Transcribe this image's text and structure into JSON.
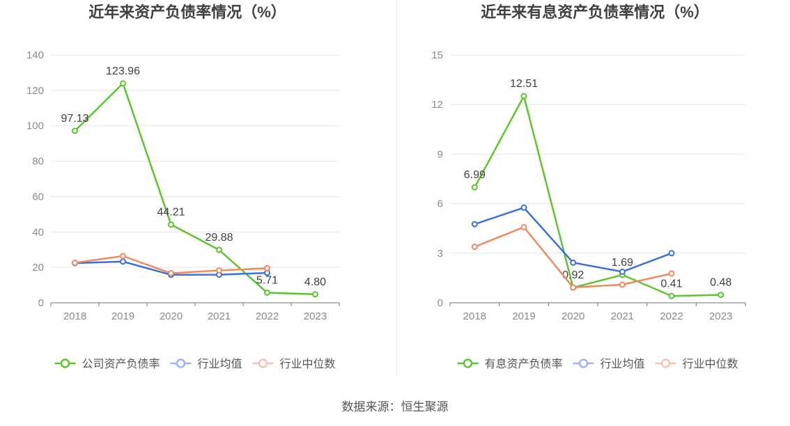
{
  "chart_data": [
    {
      "type": "line",
      "title": "近年来资产负债率情况（%）",
      "categories": [
        "2018",
        "2019",
        "2020",
        "2021",
        "2022",
        "2023"
      ],
      "ylim": [
        0,
        140
      ],
      "yticks": [
        0,
        20,
        40,
        60,
        80,
        100,
        120,
        140
      ],
      "grid": true,
      "legend": "bottom",
      "series": [
        {
          "name": "公司资产负债率",
          "color": "#5cc52e",
          "data_labels": true,
          "values": [
            97.13,
            123.96,
            44.21,
            29.88,
            5.71,
            4.8
          ]
        },
        {
          "name": "行业均值",
          "color": "#3a6fdc",
          "data_labels": false,
          "values": [
            22.4,
            23.3,
            15.8,
            15.9,
            16.9,
            null
          ]
        },
        {
          "name": "行业中位数",
          "color": "#ef8a60",
          "data_labels": false,
          "values": [
            22.6,
            26.4,
            16.7,
            18.3,
            19.5,
            null
          ]
        }
      ]
    },
    {
      "type": "line",
      "title": "近年来有息资产负债率情况（%）",
      "categories": [
        "2018",
        "2019",
        "2020",
        "2021",
        "2022",
        "2023"
      ],
      "ylim": [
        0,
        15
      ],
      "yticks": [
        0,
        3,
        6,
        9,
        12,
        15
      ],
      "grid": true,
      "legend": "bottom",
      "series": [
        {
          "name": "有息资产负债率",
          "color": "#5cc52e",
          "data_labels": true,
          "values": [
            6.99,
            12.51,
            0.92,
            1.69,
            0.41,
            0.48
          ]
        },
        {
          "name": "行业均值",
          "color": "#3a6fdc",
          "data_labels": false,
          "values": [
            4.76,
            5.76,
            2.43,
            1.88,
            3.0,
            null
          ]
        },
        {
          "name": "行业中位数",
          "color": "#ef8a60",
          "data_labels": false,
          "values": [
            3.39,
            4.58,
            0.93,
            1.1,
            1.77,
            null
          ]
        }
      ]
    }
  ],
  "source": "数据来源：恒生聚源"
}
